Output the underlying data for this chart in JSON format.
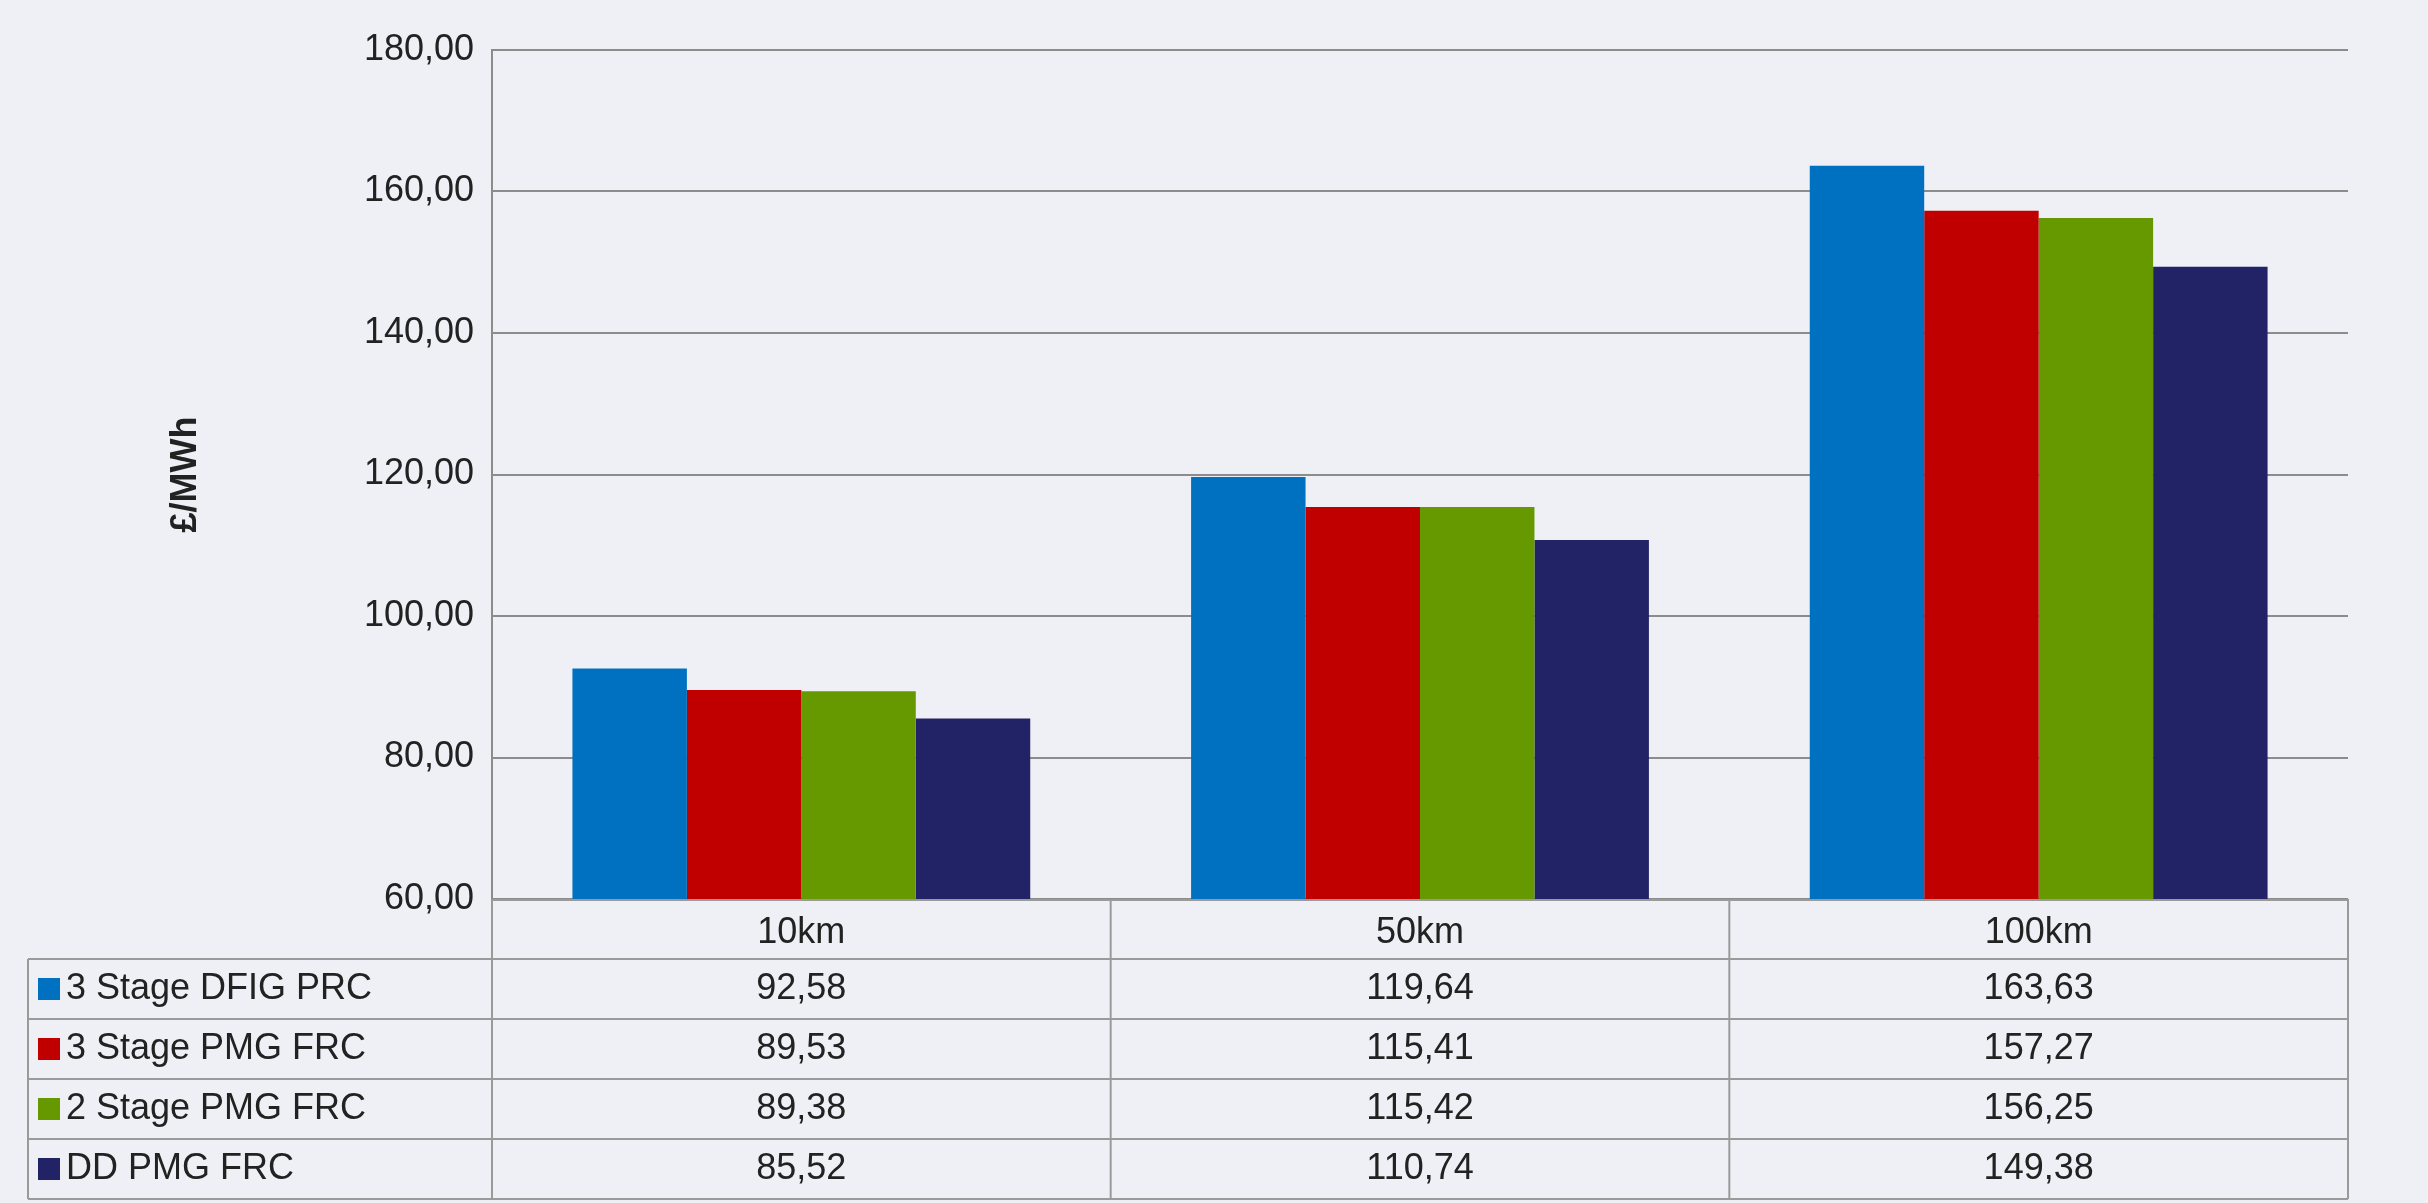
{
  "chart_data": {
    "type": "bar",
    "ylabel": "£/MWh",
    "categories": [
      "10km",
      "50km",
      "100km"
    ],
    "series": [
      {
        "name": "3 Stage DFIG PRC",
        "color": "#0070c0",
        "values": [
          92.58,
          119.64,
          163.63
        ],
        "value_labels": [
          "92,58",
          "119,64",
          "163,63"
        ]
      },
      {
        "name": "3 Stage PMG FRC",
        "color": "#c00000",
        "values": [
          89.53,
          115.41,
          157.27
        ],
        "value_labels": [
          "89,53",
          "115,41",
          "157,27"
        ]
      },
      {
        "name": "2 Stage PMG FRC",
        "color": "#669900",
        "values": [
          89.38,
          115.42,
          156.25
        ],
        "value_labels": [
          "89,38",
          "115,42",
          "156,25"
        ]
      },
      {
        "name": "DD PMG FRC",
        "color": "#222266",
        "values": [
          85.52,
          110.74,
          149.38
        ],
        "value_labels": [
          "85,52",
          "110,74",
          "149,38"
        ]
      }
    ],
    "ylim": [
      60,
      180
    ],
    "yticks": [
      {
        "value": 60,
        "label": "60,00"
      },
      {
        "value": 80,
        "label": "80,00"
      },
      {
        "value": 100,
        "label": "100,00"
      },
      {
        "value": 120,
        "label": "120,00"
      },
      {
        "value": 140,
        "label": "140,00"
      },
      {
        "value": 160,
        "label": "160,00"
      },
      {
        "value": 180,
        "label": "180,00"
      }
    ],
    "grid": "y",
    "legend": "bottom left"
  }
}
